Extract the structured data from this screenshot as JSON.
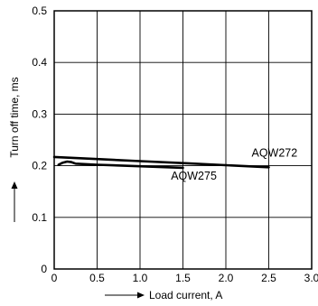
{
  "chart_data": {
    "type": "line",
    "xlabel": "Load current, A",
    "ylabel": "Turn off time, ms",
    "xlim": [
      0,
      3.0
    ],
    "ylim": [
      0,
      0.5
    ],
    "x_ticks": [
      "0",
      "0.5",
      "1.0",
      "1.5",
      "2.0",
      "2.5",
      "3.0"
    ],
    "y_ticks": [
      "0",
      "0.1",
      "0.2",
      "0.3",
      "0.4",
      "0.5"
    ],
    "grid": true,
    "series": [
      {
        "name": "AQW272",
        "x": [
          0,
          0.5,
          1.0,
          1.5,
          2.0,
          2.5
        ],
        "y": [
          0.217,
          0.213,
          0.209,
          0.205,
          0.201,
          0.197
        ]
      },
      {
        "name": "AQW275",
        "x": [
          0.05,
          0.1,
          0.15,
          0.2,
          0.25,
          0.5,
          1.0,
          1.5
        ],
        "y": [
          0.202,
          0.206,
          0.208,
          0.207,
          0.204,
          0.202,
          0.199,
          0.196
        ]
      }
    ]
  }
}
